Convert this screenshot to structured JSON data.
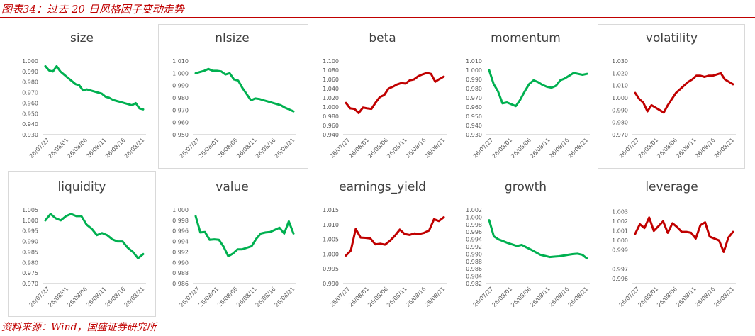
{
  "header": {
    "title": "图表34：过去 20 日风格因子变动走势"
  },
  "footer": {
    "source": "资料来源：Wind，国盛证券研究所"
  },
  "colors": {
    "up": "#c00000",
    "down": "#00b050",
    "axis": "#595959",
    "accent": "#c00000"
  },
  "chart_data": [
    {
      "type": "line",
      "title": "size",
      "color": "green",
      "xticks": [
        "26/07/27",
        "26/08/01",
        "26/08/06",
        "26/08/11",
        "26/08/16",
        "26/08/21"
      ],
      "yticks": [
        "0.930",
        "0.940",
        "0.950",
        "0.960",
        "0.970",
        "0.980",
        "0.990",
        "1.000"
      ],
      "ylim": [
        0.93,
        1.0
      ],
      "values": [
        0.995,
        0.991,
        0.99,
        0.995,
        0.99,
        0.987,
        0.984,
        0.981,
        0.978,
        0.977,
        0.972,
        0.973,
        0.972,
        0.971,
        0.97,
        0.969,
        0.966,
        0.965,
        0.963,
        0.962,
        0.961,
        0.96,
        0.959,
        0.958,
        0.96,
        0.955,
        0.954
      ]
    },
    {
      "type": "line",
      "title": "nlsize",
      "color": "green",
      "xticks": [
        "26/07/27",
        "26/08/01",
        "26/08/06",
        "26/08/11",
        "26/08/16",
        "26/08/21"
      ],
      "yticks": [
        "0.950",
        "0.960",
        "0.970",
        "0.980",
        "0.990",
        "1.000",
        "1.010"
      ],
      "ylim": [
        0.95,
        1.01
      ],
      "values": [
        1.0,
        1.001,
        1.002,
        1.0035,
        1.002,
        1.002,
        1.0015,
        0.999,
        1.0,
        0.995,
        0.994,
        0.988,
        0.983,
        0.978,
        0.9795,
        0.979,
        0.978,
        0.977,
        0.976,
        0.975,
        0.974,
        0.972,
        0.9705,
        0.969
      ]
    },
    {
      "type": "line",
      "title": "beta",
      "color": "red",
      "xticks": [
        "26/07/27",
        "26/08/01",
        "26/08/06",
        "26/08/11",
        "26/08/16",
        "26/08/21"
      ],
      "yticks": [
        "0.940",
        "0.960",
        "0.980",
        "1.000",
        "1.020",
        "1.040",
        "1.060",
        "1.080",
        "1.100"
      ],
      "ylim": [
        0.94,
        1.1
      ],
      "values": [
        1.009,
        0.997,
        0.996,
        0.987,
        0.999,
        0.997,
        0.996,
        1.01,
        1.022,
        1.026,
        1.04,
        1.044,
        1.049,
        1.052,
        1.051,
        1.058,
        1.06,
        1.067,
        1.071,
        1.074,
        1.072,
        1.055,
        1.061,
        1.066
      ]
    },
    {
      "type": "line",
      "title": "momentum",
      "color": "green",
      "xticks": [
        "26/07/27",
        "26/08/01",
        "26/08/06",
        "26/08/11",
        "26/08/16",
        "26/08/21"
      ],
      "yticks": [
        "0.930",
        "0.940",
        "0.950",
        "0.960",
        "0.970",
        "0.980",
        "0.990",
        "1.000",
        "1.010"
      ],
      "ylim": [
        0.93,
        1.01
      ],
      "values": [
        1.0,
        0.985,
        0.977,
        0.964,
        0.965,
        0.963,
        0.961,
        0.968,
        0.977,
        0.985,
        0.989,
        0.987,
        0.984,
        0.982,
        0.981,
        0.983,
        0.989,
        0.991,
        0.994,
        0.997,
        0.996,
        0.995,
        0.996
      ]
    },
    {
      "type": "line",
      "title": "volatility",
      "color": "red",
      "xticks": [
        "26/07/27",
        "26/08/01",
        "26/08/06",
        "26/08/11",
        "26/08/16",
        "26/08/21"
      ],
      "yticks": [
        "0.970",
        "0.980",
        "0.990",
        "1.000",
        "1.010",
        "1.020",
        "1.030"
      ],
      "ylim": [
        0.97,
        1.03
      ],
      "values": [
        1.004,
        0.999,
        0.996,
        0.989,
        0.994,
        0.992,
        0.99,
        0.988,
        0.994,
        0.999,
        1.004,
        1.007,
        1.01,
        1.013,
        1.015,
        1.018,
        1.018,
        1.017,
        1.018,
        1.018,
        1.019,
        1.02,
        1.015,
        1.013,
        1.011
      ]
    },
    {
      "type": "line",
      "title": "liquidity",
      "color": "green",
      "xticks": [
        "26/07/27",
        "26/08/01",
        "26/08/06",
        "26/08/11",
        "26/08/16",
        "26/08/21"
      ],
      "yticks": [
        "0.970",
        "0.975",
        "0.980",
        "0.985",
        "0.990",
        "0.995",
        "1.000",
        "1.005"
      ],
      "ylim": [
        0.97,
        1.005
      ],
      "values": [
        1.0,
        1.003,
        1.001,
        1.0,
        1.002,
        1.003,
        1.002,
        1.002,
        0.998,
        0.996,
        0.993,
        0.994,
        0.993,
        0.991,
        0.99,
        0.99,
        0.987,
        0.985,
        0.982,
        0.984
      ]
    },
    {
      "type": "line",
      "title": "value",
      "color": "green",
      "xticks": [
        "26/07/27",
        "26/08/01",
        "26/08/06",
        "26/08/11",
        "26/08/16",
        "26/08/21"
      ],
      "yticks": [
        "0.986",
        "0.988",
        "0.990",
        "0.992",
        "0.994",
        "0.996",
        "0.998",
        "1.000"
      ],
      "ylim": [
        0.986,
        1.0
      ],
      "values": [
        0.9988,
        0.9957,
        0.9958,
        0.9943,
        0.9944,
        0.9943,
        0.993,
        0.9912,
        0.9917,
        0.9925,
        0.9925,
        0.9928,
        0.9931,
        0.9945,
        0.9955,
        0.9957,
        0.9958,
        0.9962,
        0.9966,
        0.9955,
        0.9978,
        0.9955
      ]
    },
    {
      "type": "line",
      "title": "earnings_yield",
      "color": "red",
      "xticks": [
        "26/07/27",
        "26/08/01",
        "26/08/06",
        "26/08/11",
        "26/08/16",
        "26/08/21"
      ],
      "yticks": [
        "0.990",
        "0.995",
        "1.000",
        "1.005",
        "1.010",
        "1.015"
      ],
      "ylim": [
        0.99,
        1.015
      ],
      "values": [
        0.9995,
        1.0012,
        1.0085,
        1.0056,
        1.0055,
        1.0053,
        1.0033,
        1.0035,
        1.0032,
        1.0045,
        1.0062,
        1.0083,
        1.0068,
        1.0065,
        1.007,
        1.0068,
        1.0072,
        1.008,
        1.0118,
        1.0112,
        1.0125
      ]
    },
    {
      "type": "line",
      "title": "growth",
      "color": "green",
      "xticks": [
        "26/07/27",
        "26/08/01",
        "26/08/06",
        "26/08/11",
        "26/08/16",
        "26/08/21"
      ],
      "yticks": [
        "0.982",
        "0.984",
        "0.986",
        "0.988",
        "0.990",
        "0.992",
        "0.994",
        "0.996",
        "0.998",
        "1.000",
        "1.002"
      ],
      "ylim": [
        0.982,
        1.002
      ],
      "values": [
        0.9992,
        0.9948,
        0.994,
        0.9935,
        0.993,
        0.9926,
        0.9922,
        0.9925,
        0.9918,
        0.9912,
        0.9905,
        0.9898,
        0.9895,
        0.9892,
        0.9893,
        0.9894,
        0.9896,
        0.9898,
        0.99,
        0.9901,
        0.9898,
        0.9888
      ]
    },
    {
      "type": "line",
      "title": "leverage",
      "color": "red",
      "xticks": [
        "26/07/27",
        "26/08/01",
        "26/08/06",
        "26/08/11",
        "26/08/16",
        "26/08/21"
      ],
      "yticks": [
        "0.996",
        "0.997",
        "0.999",
        "1.000",
        "1.001",
        "1.002",
        "1.003"
      ],
      "ylim": [
        0.9955,
        1.0032
      ],
      "values": [
        1.0007,
        1.0017,
        1.0013,
        1.0024,
        1.001,
        1.0015,
        1.002,
        1.0008,
        1.0018,
        1.0014,
        1.0009,
        1.0009,
        1.0008,
        1.0002,
        1.0016,
        1.0019,
        1.0004,
        1.0002,
        1.0,
        0.9988,
        1.0003,
        1.0009
      ]
    }
  ]
}
